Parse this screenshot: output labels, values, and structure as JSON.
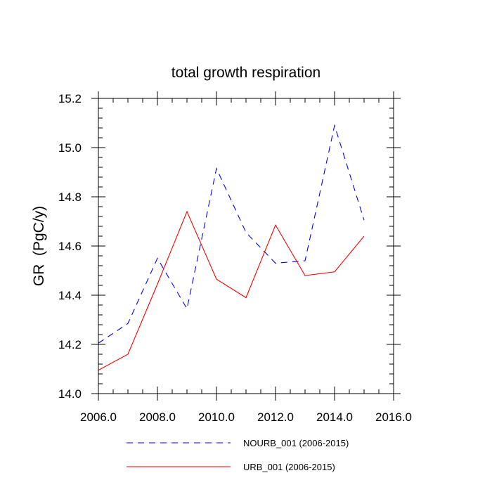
{
  "chart_data": {
    "type": "line",
    "title": "total growth respiration",
    "ylabel": "GR  (PgC/y)",
    "xlabel": "",
    "xlim": [
      2006.0,
      2016.0
    ],
    "ylim": [
      14.0,
      15.2
    ],
    "x_ticks": [
      2006.0,
      2008.0,
      2010.0,
      2012.0,
      2014.0,
      2016.0
    ],
    "x_tick_labels": [
      "2006.0",
      "2008.0",
      "2010.0",
      "2012.0",
      "2014.0",
      "2016.0"
    ],
    "y_ticks": [
      14.0,
      14.2,
      14.4,
      14.6,
      14.8,
      15.0,
      15.2
    ],
    "y_tick_labels": [
      "14.0",
      "14.2",
      "14.4",
      "14.6",
      "14.8",
      "15.0",
      "15.2"
    ],
    "x": [
      2006,
      2007,
      2008,
      2009,
      2010,
      2011,
      2012,
      2013,
      2014,
      2015
    ],
    "series": [
      {
        "name": "NOURB_001 (2006-2015)",
        "color": "#0000ff",
        "style": "dashed",
        "values": [
          14.205,
          14.285,
          14.55,
          14.345,
          14.915,
          14.655,
          14.53,
          14.54,
          15.09,
          14.705
        ]
      },
      {
        "name": "URB_001 (2006-2015)",
        "color": "#ff0000",
        "style": "solid",
        "values": [
          14.095,
          14.16,
          14.445,
          14.74,
          14.465,
          14.39,
          14.685,
          14.48,
          14.495,
          14.64
        ]
      }
    ],
    "grid": false,
    "legend": "bottom-center"
  }
}
